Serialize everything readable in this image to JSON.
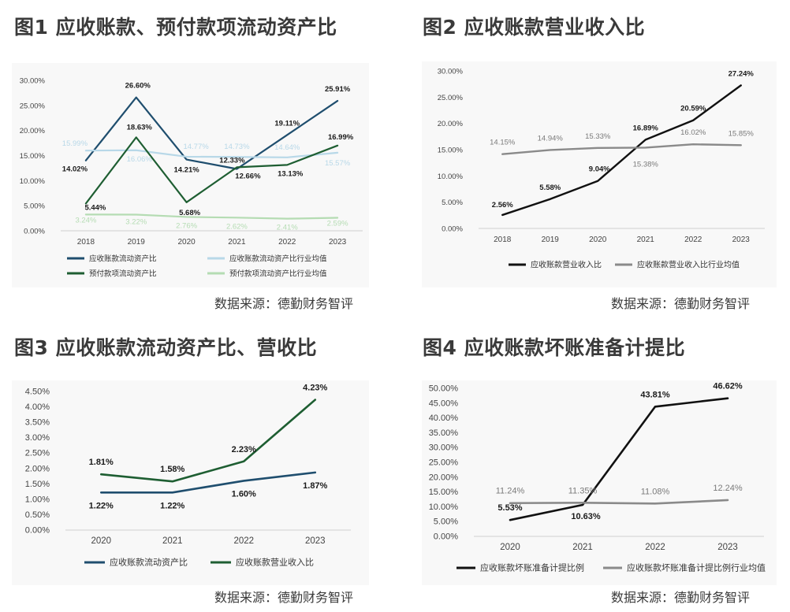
{
  "charts": [
    {
      "title": "图1 应收账款、预付款项流动资产比",
      "source": "数据来源：德勤财务智评",
      "chart_data": {
        "type": "line",
        "categories": [
          "2018",
          "2019",
          "2020",
          "2021",
          "2022",
          "2023"
        ],
        "ylim": [
          0,
          30
        ],
        "yticks": [
          "0.00%",
          "5.00%",
          "10.00%",
          "15.00%",
          "20.00%",
          "25.00%",
          "30.00%"
        ],
        "series": [
          {
            "name": "应收账款流动资产比",
            "color": "#1f4e6e",
            "width": 2.2,
            "values": [
              14.02,
              26.6,
              14.21,
              12.33,
              19.11,
              25.91
            ],
            "labels": [
              "14.02%",
              "26.60%",
              "14.21%",
              "12.33%",
              "19.11%",
              "25.91%"
            ]
          },
          {
            "name": "应收账款流动资产比行业均值",
            "color": "#b8d8e8",
            "width": 2.2,
            "values": [
              15.99,
              16.06,
              14.77,
              14.73,
              14.64,
              15.57
            ],
            "labels": [
              "15.99%",
              "16.06%",
              "14.77%",
              "14.73%",
              "14.64%",
              "15.57%"
            ]
          },
          {
            "name": "预付款项流动资产比",
            "color": "#1e5e32",
            "width": 2.2,
            "values": [
              5.44,
              18.63,
              5.68,
              12.66,
              13.13,
              16.99
            ],
            "labels": [
              "5.44%",
              "18.63%",
              "5.68%",
              "12.66%",
              "13.13%",
              "16.99%"
            ]
          },
          {
            "name": "预付款项流动资产比行业均值",
            "color": "#b5dcb3",
            "width": 2.2,
            "values": [
              3.24,
              3.22,
              2.76,
              2.62,
              2.41,
              2.59
            ],
            "labels": [
              "3.24%",
              "3.22%",
              "2.76%",
              "2.62%",
              "2.41%",
              "2.59%"
            ]
          }
        ]
      }
    },
    {
      "title": "图2 应收账款营业收入比",
      "source": "数据来源：德勤财务智评",
      "chart_data": {
        "type": "line",
        "categories": [
          "2018",
          "2019",
          "2020",
          "2021",
          "2022",
          "2023"
        ],
        "ylim": [
          0,
          30
        ],
        "yticks": [
          "0.00%",
          "5.00%",
          "10.00%",
          "15.00%",
          "20.00%",
          "25.00%",
          "30.00%"
        ],
        "series": [
          {
            "name": "应收账款营业收入比",
            "color": "#111111",
            "width": 2.4,
            "values": [
              2.56,
              5.58,
              9.04,
              16.89,
              20.59,
              27.24
            ],
            "labels": [
              "2.56%",
              "5.58%",
              "9.04%",
              "16.89%",
              "20.59%",
              "27.24%"
            ]
          },
          {
            "name": "应收账款营业收入比行业均值",
            "color": "#8a8a8a",
            "width": 2.4,
            "values": [
              14.15,
              14.94,
              15.33,
              15.38,
              16.02,
              15.85
            ],
            "labels": [
              "14.15%",
              "14.94%",
              "15.33%",
              "15.38%",
              "16.02%",
              "15.85%"
            ]
          }
        ]
      }
    },
    {
      "title": "图3 应收账款流动资产比、营收比",
      "source": "数据来源：德勤财务智评",
      "chart_data": {
        "type": "line",
        "categories": [
          "2020",
          "2021",
          "2022",
          "2023"
        ],
        "ylim": [
          0,
          4.5
        ],
        "yticks": [
          "0.00%",
          "0.50%",
          "1.00%",
          "1.50%",
          "2.00%",
          "2.50%",
          "3.00%",
          "3.50%",
          "4.00%",
          "4.50%"
        ],
        "series": [
          {
            "name": "应收账款流动资产比",
            "color": "#1f4e6e",
            "width": 2.6,
            "values": [
              1.22,
              1.22,
              1.6,
              1.87
            ],
            "labels": [
              "1.22%",
              "1.22%",
              "1.60%",
              "1.87%"
            ]
          },
          {
            "name": "应收账款营业收入比",
            "color": "#1e5e32",
            "width": 2.6,
            "values": [
              1.81,
              1.58,
              2.23,
              4.23
            ],
            "labels": [
              "1.81%",
              "1.58%",
              "2.23%",
              "4.23%"
            ]
          }
        ]
      }
    },
    {
      "title": "图4 应收账款坏账准备计提比",
      "source": "数据来源：德勤财务智评",
      "chart_data": {
        "type": "line",
        "categories": [
          "2020",
          "2021",
          "2022",
          "2023"
        ],
        "ylim": [
          0,
          50
        ],
        "yticks": [
          "0.00%",
          "5.00%",
          "10.00%",
          "15.00%",
          "20.00%",
          "25.00%",
          "30.00%",
          "35.00%",
          "40.00%",
          "45.00%",
          "50.00%"
        ],
        "series": [
          {
            "name": "应收账款坏账准备计提比例",
            "color": "#111111",
            "width": 2.6,
            "values": [
              5.53,
              10.63,
              43.81,
              46.62
            ],
            "labels": [
              "5.53%",
              "10.63%",
              "43.81%",
              "46.62%"
            ]
          },
          {
            "name": "应收账款坏账准备计提比例行业均值",
            "color": "#8a8a8a",
            "width": 2.6,
            "values": [
              11.24,
              11.35,
              11.08,
              12.24
            ],
            "labels": [
              "11.24%",
              "11.35%",
              "11.08%",
              "12.24%"
            ]
          }
        ]
      }
    }
  ]
}
